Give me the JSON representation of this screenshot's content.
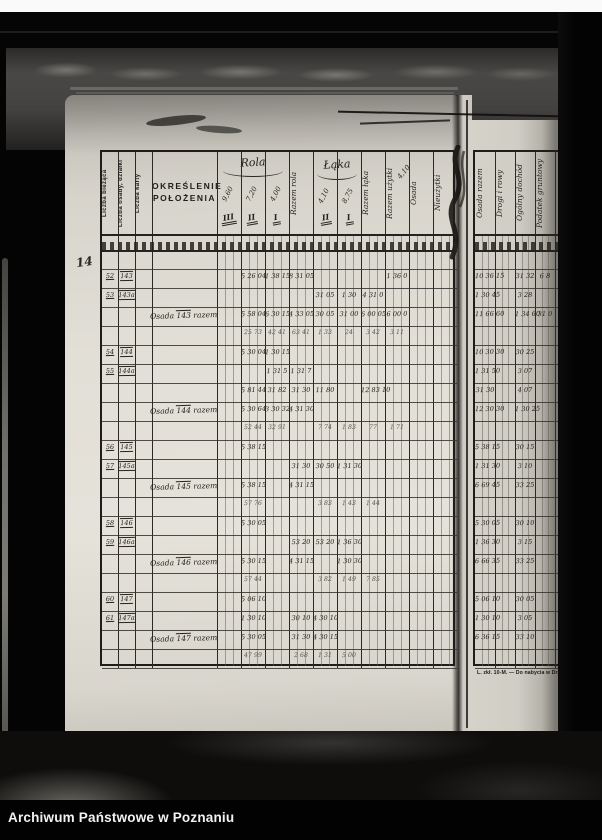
{
  "photo": {
    "caption": "Archiwum Państwowe w Poznaniu",
    "folio": "14"
  },
  "left_table": {
    "printed_vertical_columns": [
      "Liczba bieżąca",
      "Liczba osady, działki",
      "Liczba karty"
    ],
    "location_header_line1": "OKREŚLENIE",
    "location_header_line2": "POŁOŻENIA",
    "groups": [
      {
        "label": "Rola",
        "subcols": [
          {
            "rate": "9,60",
            "cls": "III"
          },
          {
            "rate": "7,20",
            "cls": "II"
          },
          {
            "rate": "4,00",
            "cls": "I"
          }
        ]
      },
      {
        "label": "Łąka",
        "subcols": [
          {
            "rate": "4,10",
            "cls": "II"
          },
          {
            "rate": "8,75",
            "cls": "I"
          }
        ]
      }
    ],
    "vertical_handwritten": [
      "Razem rola",
      "Razem łąka",
      "Razem użytki",
      "Osada",
      "Nieużytki"
    ],
    "header_note": "4,10"
  },
  "right_table": {
    "vertical_handwritten": [
      "Osada razem",
      "Drogi i rowy",
      "Ogólny dochód",
      "Podatek gruntowy"
    ]
  },
  "footer_print": "L. zkł. 10-M. — Do nabycia w Dr.",
  "rows": [
    {},
    {
      "no": "52",
      "osada": "143",
      "cells": {
        "d1": "5 26 04",
        "d2": "1 38 15",
        "d3": "8 31 05",
        "d7": "1 36 0"
      },
      "right": {
        "r0": "10 36 15",
        "r2": "31 32",
        "r3": "6 8"
      }
    },
    {
      "no": "53",
      "osada": "143a",
      "cells": {
        "d4": "31 05",
        "d5": "1 30",
        "d6": "4 31 0"
      },
      "right": {
        "r0": "1 30 45",
        "r2": "3 28"
      }
    },
    {
      "label": "Osada 143 razem",
      "cells": {
        "d1": "5 58 04",
        "d2": "6 30 15",
        "d3": "4 33 05",
        "d4": "30 05",
        "d5": "31 00",
        "d6": "6 00 05",
        "d7": "6 00 0"
      },
      "right": {
        "r0": "11 66 60",
        "r2": "1 34 60",
        "r3": "31 0"
      }
    },
    {
      "pencil": true,
      "cells": {
        "d1": "25 73",
        "d2": "42 41",
        "d3": "63 41",
        "d4": "1 33",
        "d5": "24",
        "d6": "3 42",
        "d7": "3 11"
      }
    },
    {
      "no": "54",
      "osada": "144",
      "cells": {
        "d1": "5 30 04",
        "d2": "1 30 15"
      },
      "right": {
        "r0": "10 30 30",
        "r2": "30 25"
      }
    },
    {
      "no": "55",
      "osada": "144a",
      "cells": {
        "d2": "1 31 5",
        "d3": "1 31 7"
      },
      "right": {
        "r0": "1 31 50",
        "r2": "3 07"
      }
    },
    {
      "cells": {
        "d1": "5 81 44",
        "d2": "31 82",
        "d3": "31 30",
        "d4": "11 80",
        "d6": "12 83 10"
      },
      "right": {
        "r0": "31 30",
        "r2": "4 07"
      }
    },
    {
      "label": "Osada 144 razem",
      "cells": {
        "d1": "5 30 64",
        "d2": "3 30 32",
        "d3": "4 31 30"
      },
      "right": {
        "r0": "12 30 30",
        "r2": "1 30 25"
      }
    },
    {
      "pencil": true,
      "cells": {
        "d1": "52 44",
        "d2": "32 91",
        "d4": "7 74",
        "d5": "1 83",
        "d6": "77",
        "d7": "1 71"
      }
    },
    {
      "no": "56",
      "osada": "145",
      "cells": {
        "d1": "5 38 15"
      },
      "right": {
        "r0": "5 38 15",
        "r2": "30 15"
      }
    },
    {
      "no": "57",
      "osada": "145a",
      "cells": {
        "d3": "31 30",
        "d4": "30 50",
        "d5": "1 31 30"
      },
      "right": {
        "r0": "1 31 30",
        "r2": "3 10"
      }
    },
    {
      "label": "Osada 145 razem",
      "cells": {
        "d1": "5 38 15",
        "d3": "4 31 15"
      },
      "right": {
        "r0": "6 69 45",
        "r2": "33 25"
      }
    },
    {
      "pencil": true,
      "cells": {
        "d1": "57 76",
        "d4": "3 83",
        "d5": "1 43",
        "d6": "1 44"
      }
    },
    {
      "no": "58",
      "osada": "146",
      "cells": {
        "d1": "5 30 05"
      },
      "right": {
        "r0": "5 30 05",
        "r2": "30 10"
      }
    },
    {
      "no": "59",
      "osada": "146a",
      "cells": {
        "d3": "53 20",
        "d4": "53 20",
        "d5": "1 36 30"
      },
      "right": {
        "r0": "1 36 30",
        "r2": "3 15"
      }
    },
    {
      "label": "Osada 146 razem",
      "cells": {
        "d1": "5 30 15",
        "d3": "4 31 15",
        "d5": "1 30 30"
      },
      "right": {
        "r0": "6 66 35",
        "r2": "33 25"
      }
    },
    {
      "pencil": true,
      "cells": {
        "d1": "57 44",
        "d4": "3 82",
        "d5": "1 49",
        "d6": "7 85"
      }
    },
    {
      "no": "60",
      "osada": "147",
      "cells": {
        "d1": "5 06 10"
      },
      "right": {
        "r0": "5 06 10",
        "r2": "30 05"
      }
    },
    {
      "no": "61",
      "osada": "147a",
      "cells": {
        "d1": "1 30 10",
        "d3": "30 10",
        "d4": "4 30 10"
      },
      "right": {
        "r0": "1 30 10",
        "r2": "3 05"
      }
    },
    {
      "label": "Osada 147 razem",
      "cells": {
        "d1": "5 30 05",
        "d3": "31 30",
        "d4": "4 30 15"
      },
      "right": {
        "r0": "6 36 15",
        "r2": "33 10"
      }
    },
    {
      "pencil": true,
      "cells": {
        "d1": "47 99",
        "d3": "2 68",
        "d4": "1 31",
        "d5": "5 00"
      }
    }
  ]
}
